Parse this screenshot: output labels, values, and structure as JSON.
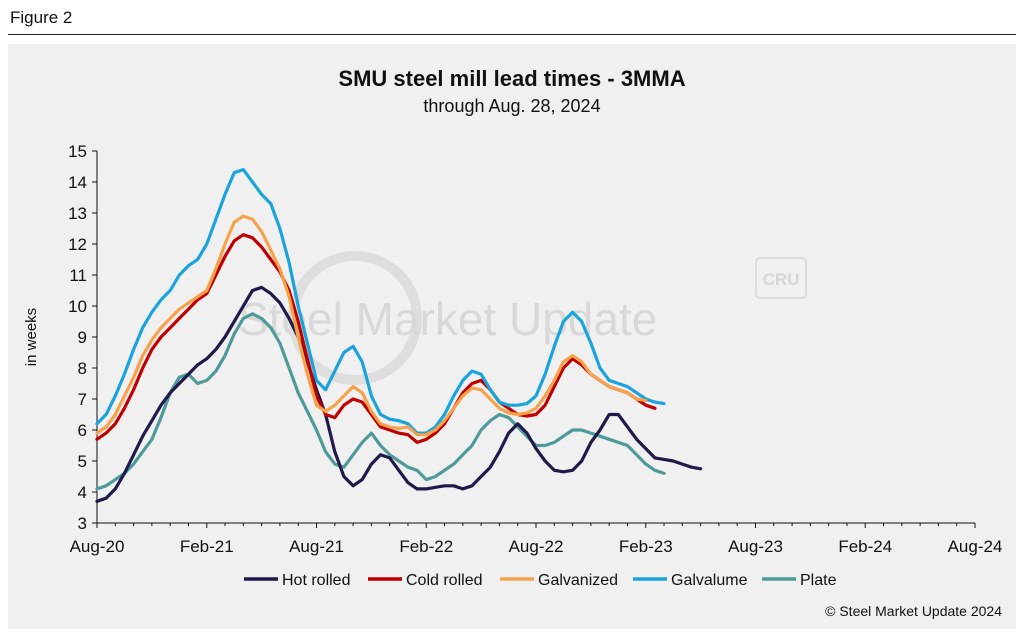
{
  "figure_label": "Figure 2",
  "copyright": "© Steel Market Update 2024",
  "watermark": {
    "text": "Steel Market Update",
    "badge": "CRU"
  },
  "colors": {
    "hot_rolled": "#1f1a4a",
    "cold_rolled": "#c00000",
    "galvanized": "#f5a24a",
    "galvalume": "#1aa3dc",
    "plate": "#4e9a9a"
  },
  "chart_data": {
    "type": "line",
    "title": "SMU steel mill lead times - 3MMA",
    "subtitle": "through Aug. 28, 2024",
    "ylabel": "in weeks",
    "xlabel": "",
    "ylim": [
      3,
      15
    ],
    "yticks": [
      3,
      4,
      5,
      6,
      7,
      8,
      9,
      10,
      11,
      12,
      13,
      14,
      15
    ],
    "x_tick_labels": [
      "Aug-20",
      "Feb-21",
      "Aug-21",
      "Feb-22",
      "Aug-22",
      "Feb-23",
      "Aug-23",
      "Feb-24",
      "Aug-24"
    ],
    "x_ticks_at_month": [
      0,
      6,
      12,
      18,
      24,
      30,
      36,
      42,
      48
    ],
    "x_start": "Aug-20",
    "x_end": "Aug-24",
    "grid": false,
    "legend_position": "bottom",
    "series": [
      {
        "name": "Hot rolled",
        "color_key": "hot_rolled",
        "points": [
          [
            0,
            3.7
          ],
          [
            0.5,
            3.8
          ],
          [
            1,
            4.1
          ],
          [
            1.5,
            4.6
          ],
          [
            2,
            5.2
          ],
          [
            2.5,
            5.8
          ],
          [
            3,
            6.3
          ],
          [
            3.5,
            6.8
          ],
          [
            4,
            7.2
          ],
          [
            4.5,
            7.5
          ],
          [
            5,
            7.8
          ],
          [
            5.5,
            8.1
          ],
          [
            6,
            8.3
          ],
          [
            6.5,
            8.6
          ],
          [
            7,
            9.0
          ],
          [
            7.5,
            9.5
          ],
          [
            8,
            10.0
          ],
          [
            8.5,
            10.5
          ],
          [
            9,
            10.6
          ],
          [
            9.5,
            10.4
          ],
          [
            10,
            10.1
          ],
          [
            10.5,
            9.6
          ],
          [
            11,
            9.0
          ],
          [
            11.5,
            8.2
          ],
          [
            12,
            7.3
          ],
          [
            12.5,
            6.5
          ],
          [
            13,
            5.3
          ],
          [
            13.5,
            4.5
          ],
          [
            14,
            4.2
          ],
          [
            14.5,
            4.4
          ],
          [
            15,
            4.9
          ],
          [
            15.5,
            5.2
          ],
          [
            16,
            5.1
          ],
          [
            16.5,
            4.7
          ],
          [
            17,
            4.3
          ],
          [
            17.5,
            4.1
          ],
          [
            18,
            4.1
          ],
          [
            18.5,
            4.15
          ],
          [
            19,
            4.2
          ],
          [
            19.5,
            4.2
          ],
          [
            20,
            4.1
          ],
          [
            20.5,
            4.2
          ],
          [
            21,
            4.5
          ],
          [
            21.5,
            4.8
          ],
          [
            22,
            5.3
          ],
          [
            22.5,
            5.9
          ],
          [
            23,
            6.2
          ],
          [
            23.5,
            5.9
          ],
          [
            24,
            5.4
          ],
          [
            24.5,
            5.0
          ],
          [
            25,
            4.7
          ],
          [
            25.5,
            4.65
          ],
          [
            26,
            4.7
          ],
          [
            26.5,
            5.0
          ],
          [
            27,
            5.6
          ],
          [
            27.5,
            6.0
          ],
          [
            28,
            6.5
          ],
          [
            28.5,
            6.5
          ],
          [
            29,
            6.1
          ],
          [
            29.5,
            5.7
          ],
          [
            30,
            5.4
          ],
          [
            30.5,
            5.1
          ],
          [
            31,
            5.05
          ],
          [
            31.5,
            5.0
          ],
          [
            32,
            4.9
          ],
          [
            32.5,
            4.8
          ],
          [
            33,
            4.75
          ]
        ]
      },
      {
        "name": "Cold rolled",
        "color_key": "cold_rolled",
        "points": [
          [
            0,
            5.7
          ],
          [
            0.5,
            5.9
          ],
          [
            1,
            6.2
          ],
          [
            1.5,
            6.7
          ],
          [
            2,
            7.3
          ],
          [
            2.5,
            8.0
          ],
          [
            3,
            8.6
          ],
          [
            3.5,
            9.0
          ],
          [
            4,
            9.3
          ],
          [
            4.5,
            9.6
          ],
          [
            5,
            9.9
          ],
          [
            5.5,
            10.2
          ],
          [
            6,
            10.4
          ],
          [
            6.5,
            11.0
          ],
          [
            7,
            11.6
          ],
          [
            7.5,
            12.1
          ],
          [
            8,
            12.3
          ],
          [
            8.5,
            12.2
          ],
          [
            9,
            11.9
          ],
          [
            9.5,
            11.5
          ],
          [
            10,
            11.1
          ],
          [
            10.5,
            10.5
          ],
          [
            11,
            9.5
          ],
          [
            11.5,
            8.3
          ],
          [
            12,
            7.1
          ],
          [
            12.5,
            6.5
          ],
          [
            13,
            6.4
          ],
          [
            13.5,
            6.8
          ],
          [
            14,
            7.0
          ],
          [
            14.5,
            6.9
          ],
          [
            15,
            6.5
          ],
          [
            15.5,
            6.1
          ],
          [
            16,
            6.0
          ],
          [
            16.5,
            5.9
          ],
          [
            17,
            5.85
          ],
          [
            17.5,
            5.6
          ],
          [
            18,
            5.7
          ],
          [
            18.5,
            5.9
          ],
          [
            19,
            6.2
          ],
          [
            19.5,
            6.7
          ],
          [
            20,
            7.2
          ],
          [
            20.5,
            7.5
          ],
          [
            21,
            7.6
          ],
          [
            21.5,
            7.3
          ],
          [
            22,
            6.9
          ],
          [
            22.5,
            6.7
          ],
          [
            23,
            6.5
          ],
          [
            23.5,
            6.45
          ],
          [
            24,
            6.5
          ],
          [
            24.5,
            6.8
          ],
          [
            25,
            7.4
          ],
          [
            25.5,
            8.0
          ],
          [
            26,
            8.3
          ],
          [
            26.5,
            8.1
          ],
          [
            27,
            7.8
          ],
          [
            27.5,
            7.6
          ],
          [
            28,
            7.4
          ],
          [
            28.5,
            7.3
          ],
          [
            29,
            7.2
          ],
          [
            29.5,
            7.0
          ],
          [
            30,
            6.8
          ],
          [
            30.5,
            6.7
          ]
        ]
      },
      {
        "name": "Galvanized",
        "color_key": "galvanized",
        "points": [
          [
            0,
            5.9
          ],
          [
            0.5,
            6.1
          ],
          [
            1,
            6.5
          ],
          [
            1.5,
            7.1
          ],
          [
            2,
            7.7
          ],
          [
            2.5,
            8.4
          ],
          [
            3,
            8.9
          ],
          [
            3.5,
            9.3
          ],
          [
            4,
            9.6
          ],
          [
            4.5,
            9.9
          ],
          [
            5,
            10.1
          ],
          [
            5.5,
            10.3
          ],
          [
            6,
            10.5
          ],
          [
            6.5,
            11.2
          ],
          [
            7,
            12.0
          ],
          [
            7.5,
            12.7
          ],
          [
            8,
            12.9
          ],
          [
            8.5,
            12.8
          ],
          [
            9,
            12.4
          ],
          [
            9.5,
            11.8
          ],
          [
            10,
            11.2
          ],
          [
            10.5,
            10.3
          ],
          [
            11,
            9.0
          ],
          [
            11.5,
            7.8
          ],
          [
            12,
            6.8
          ],
          [
            12.5,
            6.6
          ],
          [
            13,
            6.8
          ],
          [
            13.5,
            7.1
          ],
          [
            14,
            7.4
          ],
          [
            14.5,
            7.2
          ],
          [
            15,
            6.6
          ],
          [
            15.5,
            6.2
          ],
          [
            16,
            6.1
          ],
          [
            16.5,
            6.05
          ],
          [
            17,
            6.1
          ],
          [
            17.5,
            5.85
          ],
          [
            18,
            5.85
          ],
          [
            18.5,
            6.0
          ],
          [
            19,
            6.3
          ],
          [
            19.5,
            6.7
          ],
          [
            20,
            7.1
          ],
          [
            20.5,
            7.35
          ],
          [
            21,
            7.3
          ],
          [
            21.5,
            7.0
          ],
          [
            22,
            6.7
          ],
          [
            22.5,
            6.55
          ],
          [
            23,
            6.5
          ],
          [
            23.5,
            6.55
          ],
          [
            24,
            6.7
          ],
          [
            24.5,
            7.1
          ],
          [
            25,
            7.6
          ],
          [
            25.5,
            8.2
          ],
          [
            26,
            8.4
          ],
          [
            26.5,
            8.2
          ],
          [
            27,
            7.8
          ],
          [
            27.5,
            7.6
          ],
          [
            28,
            7.4
          ],
          [
            28.5,
            7.3
          ],
          [
            29,
            7.2
          ],
          [
            29.5,
            7.0
          ],
          [
            30,
            6.95
          ]
        ]
      },
      {
        "name": "Galvalume",
        "color_key": "galvalume",
        "points": [
          [
            0,
            6.2
          ],
          [
            0.5,
            6.5
          ],
          [
            1,
            7.1
          ],
          [
            1.5,
            7.8
          ],
          [
            2,
            8.6
          ],
          [
            2.5,
            9.3
          ],
          [
            3,
            9.8
          ],
          [
            3.5,
            10.2
          ],
          [
            4,
            10.5
          ],
          [
            4.5,
            11.0
          ],
          [
            5,
            11.3
          ],
          [
            5.5,
            11.5
          ],
          [
            6,
            12.0
          ],
          [
            6.5,
            12.8
          ],
          [
            7,
            13.6
          ],
          [
            7.5,
            14.3
          ],
          [
            8,
            14.4
          ],
          [
            8.5,
            14.0
          ],
          [
            9,
            13.6
          ],
          [
            9.5,
            13.3
          ],
          [
            10,
            12.5
          ],
          [
            10.5,
            11.4
          ],
          [
            11,
            10.0
          ],
          [
            11.5,
            8.8
          ],
          [
            12,
            7.6
          ],
          [
            12.5,
            7.3
          ],
          [
            13,
            7.9
          ],
          [
            13.5,
            8.5
          ],
          [
            14,
            8.7
          ],
          [
            14.5,
            8.2
          ],
          [
            15,
            7.1
          ],
          [
            15.5,
            6.5
          ],
          [
            16,
            6.35
          ],
          [
            16.5,
            6.3
          ],
          [
            17,
            6.2
          ],
          [
            17.5,
            5.9
          ],
          [
            18,
            5.9
          ],
          [
            18.5,
            6.1
          ],
          [
            19,
            6.5
          ],
          [
            19.5,
            7.1
          ],
          [
            20,
            7.6
          ],
          [
            20.5,
            7.9
          ],
          [
            21,
            7.8
          ],
          [
            21.5,
            7.3
          ],
          [
            22,
            6.9
          ],
          [
            22.5,
            6.8
          ],
          [
            23,
            6.8
          ],
          [
            23.5,
            6.85
          ],
          [
            24,
            7.1
          ],
          [
            24.5,
            7.8
          ],
          [
            25,
            8.7
          ],
          [
            25.5,
            9.5
          ],
          [
            26,
            9.8
          ],
          [
            26.5,
            9.5
          ],
          [
            27,
            8.8
          ],
          [
            27.5,
            8.0
          ],
          [
            28,
            7.6
          ],
          [
            28.5,
            7.5
          ],
          [
            29,
            7.4
          ],
          [
            29.5,
            7.2
          ],
          [
            30,
            7.0
          ],
          [
            30.5,
            6.9
          ],
          [
            31,
            6.85
          ]
        ]
      },
      {
        "name": "Plate",
        "color_key": "plate",
        "points": [
          [
            0,
            4.1
          ],
          [
            0.5,
            4.2
          ],
          [
            1,
            4.4
          ],
          [
            1.5,
            4.6
          ],
          [
            2,
            4.9
          ],
          [
            2.5,
            5.3
          ],
          [
            3,
            5.7
          ],
          [
            3.5,
            6.4
          ],
          [
            4,
            7.2
          ],
          [
            4.5,
            7.7
          ],
          [
            5,
            7.8
          ],
          [
            5.5,
            7.5
          ],
          [
            6,
            7.6
          ],
          [
            6.5,
            7.9
          ],
          [
            7,
            8.4
          ],
          [
            7.5,
            9.1
          ],
          [
            8,
            9.6
          ],
          [
            8.5,
            9.75
          ],
          [
            9,
            9.6
          ],
          [
            9.5,
            9.3
          ],
          [
            10,
            8.8
          ],
          [
            10.5,
            8.0
          ],
          [
            11,
            7.2
          ],
          [
            11.5,
            6.6
          ],
          [
            12,
            6.0
          ],
          [
            12.5,
            5.3
          ],
          [
            13,
            4.9
          ],
          [
            13.5,
            4.8
          ],
          [
            14,
            5.2
          ],
          [
            14.5,
            5.6
          ],
          [
            15,
            5.9
          ],
          [
            15.5,
            5.5
          ],
          [
            16,
            5.2
          ],
          [
            16.5,
            5.0
          ],
          [
            17,
            4.8
          ],
          [
            17.5,
            4.7
          ],
          [
            18,
            4.4
          ],
          [
            18.5,
            4.5
          ],
          [
            19,
            4.7
          ],
          [
            19.5,
            4.9
          ],
          [
            20,
            5.2
          ],
          [
            20.5,
            5.5
          ],
          [
            21,
            6.0
          ],
          [
            21.5,
            6.3
          ],
          [
            22,
            6.5
          ],
          [
            22.5,
            6.4
          ],
          [
            23,
            6.1
          ],
          [
            23.5,
            5.8
          ],
          [
            24,
            5.5
          ],
          [
            24.5,
            5.5
          ],
          [
            25,
            5.6
          ],
          [
            25.5,
            5.8
          ],
          [
            26,
            6.0
          ],
          [
            26.5,
            6.0
          ],
          [
            27,
            5.9
          ],
          [
            27.5,
            5.8
          ],
          [
            28,
            5.7
          ],
          [
            28.5,
            5.6
          ],
          [
            29,
            5.5
          ],
          [
            29.5,
            5.2
          ],
          [
            30,
            4.9
          ],
          [
            30.5,
            4.7
          ],
          [
            31,
            4.6
          ]
        ]
      }
    ]
  }
}
